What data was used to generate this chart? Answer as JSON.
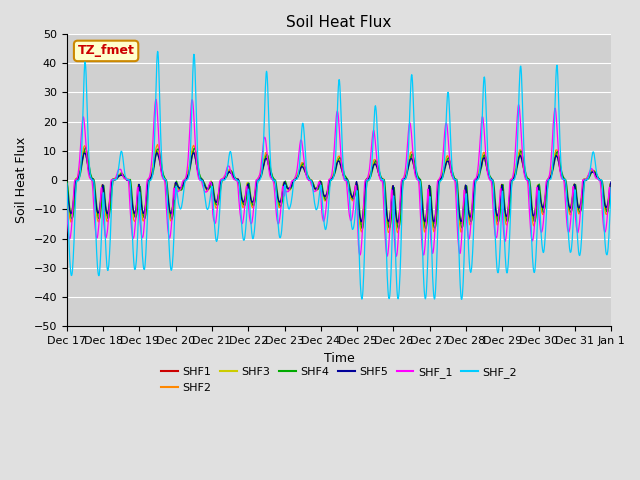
{
  "title": "Soil Heat Flux",
  "xlabel": "Time",
  "ylabel": "Soil Heat Flux",
  "ylim": [
    -50,
    50
  ],
  "yticks": [
    -50,
    -40,
    -30,
    -20,
    -10,
    0,
    10,
    20,
    30,
    40,
    50
  ],
  "background_color": "#e0e0e0",
  "plot_bg_color": "#d0d0d0",
  "grid_color": "#ffffff",
  "annotation_text": "TZ_fmet",
  "annotation_bg": "#ffffcc",
  "annotation_border": "#cc8800",
  "annotation_text_color": "#cc0000",
  "series_colors": {
    "SHF1": "#cc0000",
    "SHF2": "#ff8800",
    "SHF3": "#cccc00",
    "SHF4": "#00aa00",
    "SHF5": "#000099",
    "SHF_1": "#ff00ff",
    "SHF_2": "#00ccff"
  },
  "x_tick_labels": [
    "Dec 17",
    "Dec 18",
    "Dec 19",
    "Dec 20",
    "Dec 21",
    "Dec 22",
    "Dec 23",
    "Dec 24",
    "Dec 25",
    "Dec 26",
    "Dec 27",
    "Dec 28",
    "Dec 29",
    "Dec 30",
    "Dec 31",
    "Jan 1"
  ],
  "n_points": 1440,
  "days": 15
}
